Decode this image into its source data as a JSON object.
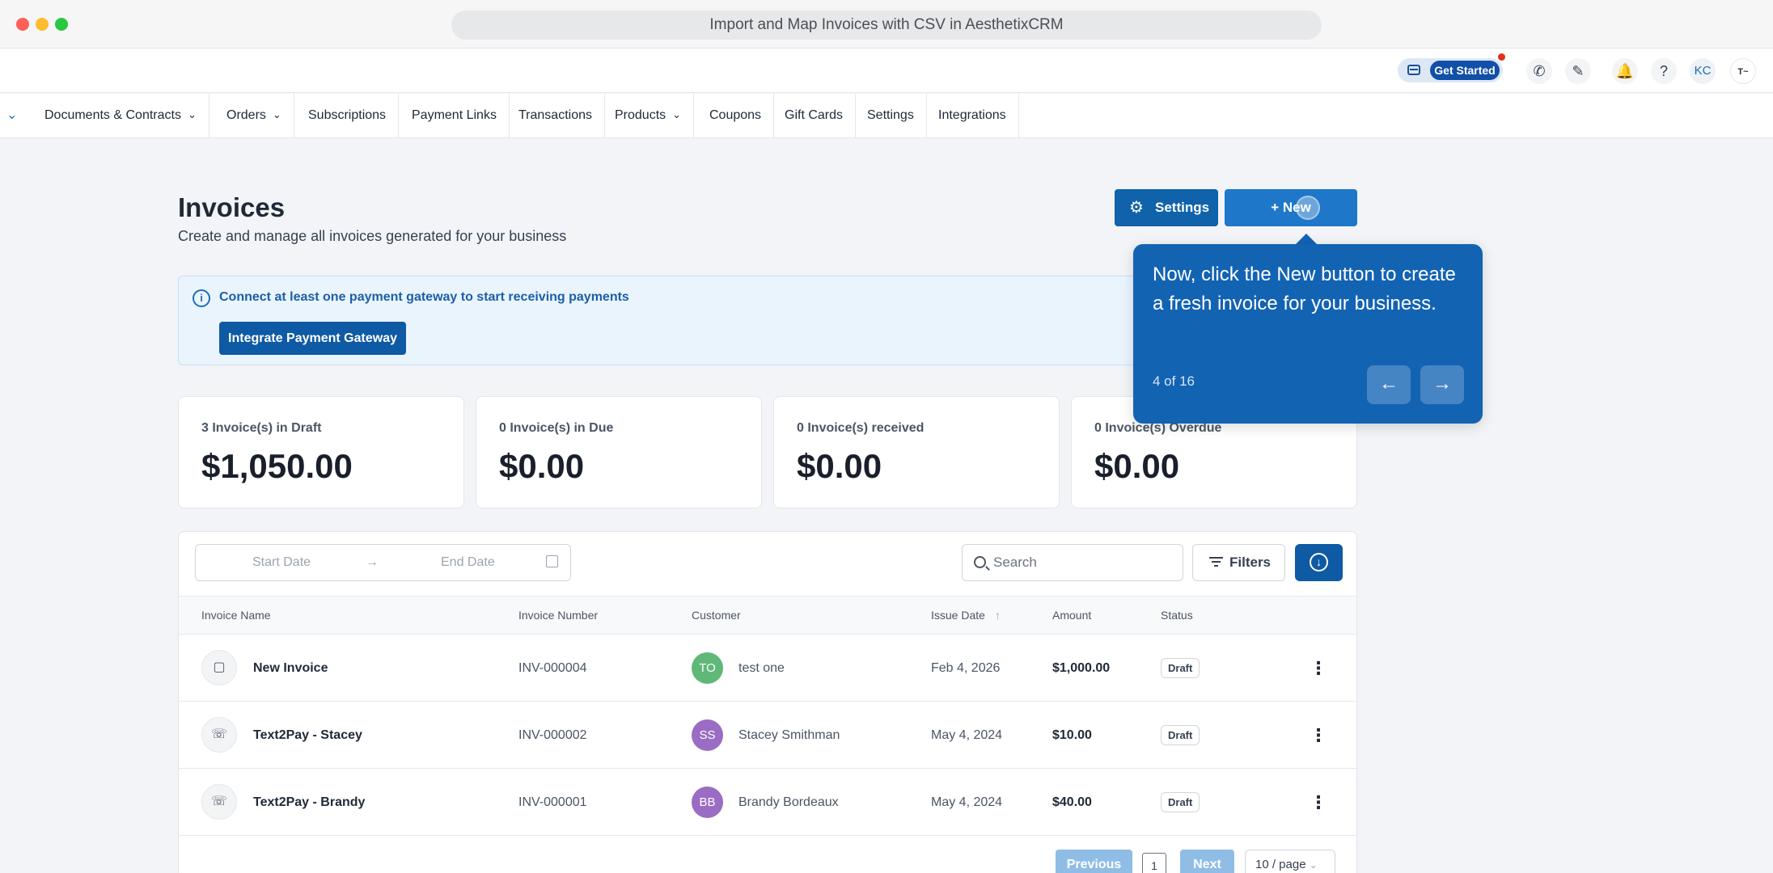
{
  "window": {
    "title": "Import and Map Invoices with CSV in AesthetixCRM"
  },
  "topbar": {
    "get_started": "Get Started",
    "avatar_initials": "KC",
    "icons": [
      "credit-card-icon",
      "phone-icon",
      "magic-wand-icon",
      "bell-icon",
      "help-icon"
    ]
  },
  "nav": {
    "items": [
      {
        "label": "Documents & Contracts",
        "dropdown": true
      },
      {
        "label": "Orders",
        "dropdown": true
      },
      {
        "label": "Subscriptions",
        "dropdown": false
      },
      {
        "label": "Payment Links",
        "dropdown": false
      },
      {
        "label": "Transactions",
        "dropdown": false
      },
      {
        "label": "Products",
        "dropdown": true
      },
      {
        "label": "Coupons",
        "dropdown": false
      },
      {
        "label": "Gift Cards",
        "dropdown": false
      },
      {
        "label": "Settings",
        "dropdown": false
      },
      {
        "label": "Integrations",
        "dropdown": false
      }
    ]
  },
  "page": {
    "title": "Invoices",
    "subtitle": "Create and manage all invoices generated for your business",
    "settings_label": "Settings",
    "new_label": "+ New"
  },
  "banner": {
    "text": "Connect at least one payment gateway to start receiving payments",
    "button": "Integrate Payment Gateway"
  },
  "stats": [
    {
      "label": "3 Invoice(s) in Draft",
      "value": "$1,050.00"
    },
    {
      "label": "0 Invoice(s) in Due",
      "value": "$0.00"
    },
    {
      "label": "0 Invoice(s) received",
      "value": "$0.00"
    },
    {
      "label": "0 Invoice(s) Overdue",
      "value": "$0.00"
    }
  ],
  "toolbar": {
    "start_date_placeholder": "Start Date",
    "end_date_placeholder": "End Date",
    "search_placeholder": "Search",
    "filters_label": "Filters"
  },
  "table": {
    "columns": [
      "Invoice Name",
      "Invoice Number",
      "Customer",
      "Issue Date",
      "Amount",
      "Status"
    ],
    "rows": [
      {
        "icon": "document-icon",
        "name": "New Invoice",
        "number": "INV-000004",
        "initials": "TO",
        "avatar_color": "#5fb878",
        "customer": "test one",
        "date": "Feb 4, 2026",
        "amount": "$1,000.00",
        "status": "Draft"
      },
      {
        "icon": "text2pay-icon",
        "name": "Text2Pay - Stacey",
        "number": "INV-000002",
        "initials": "SS",
        "avatar_color": "#9b6cc4",
        "customer": "Stacey Smithman",
        "date": "May 4, 2024",
        "amount": "$10.00",
        "status": "Draft"
      },
      {
        "icon": "text2pay-icon",
        "name": "Text2Pay - Brandy",
        "number": "INV-000001",
        "initials": "BB",
        "avatar_color": "#9b6cc4",
        "customer": "Brandy Bordeaux",
        "date": "May 4, 2024",
        "amount": "$40.00",
        "status": "Draft"
      }
    ]
  },
  "pagination": {
    "previous": "Previous",
    "current_page": "1",
    "next": "Next",
    "page_size": "10 / page"
  },
  "tour": {
    "text": "Now, click the New button to create a fresh invoice for your business.",
    "step": "4 of 16"
  }
}
